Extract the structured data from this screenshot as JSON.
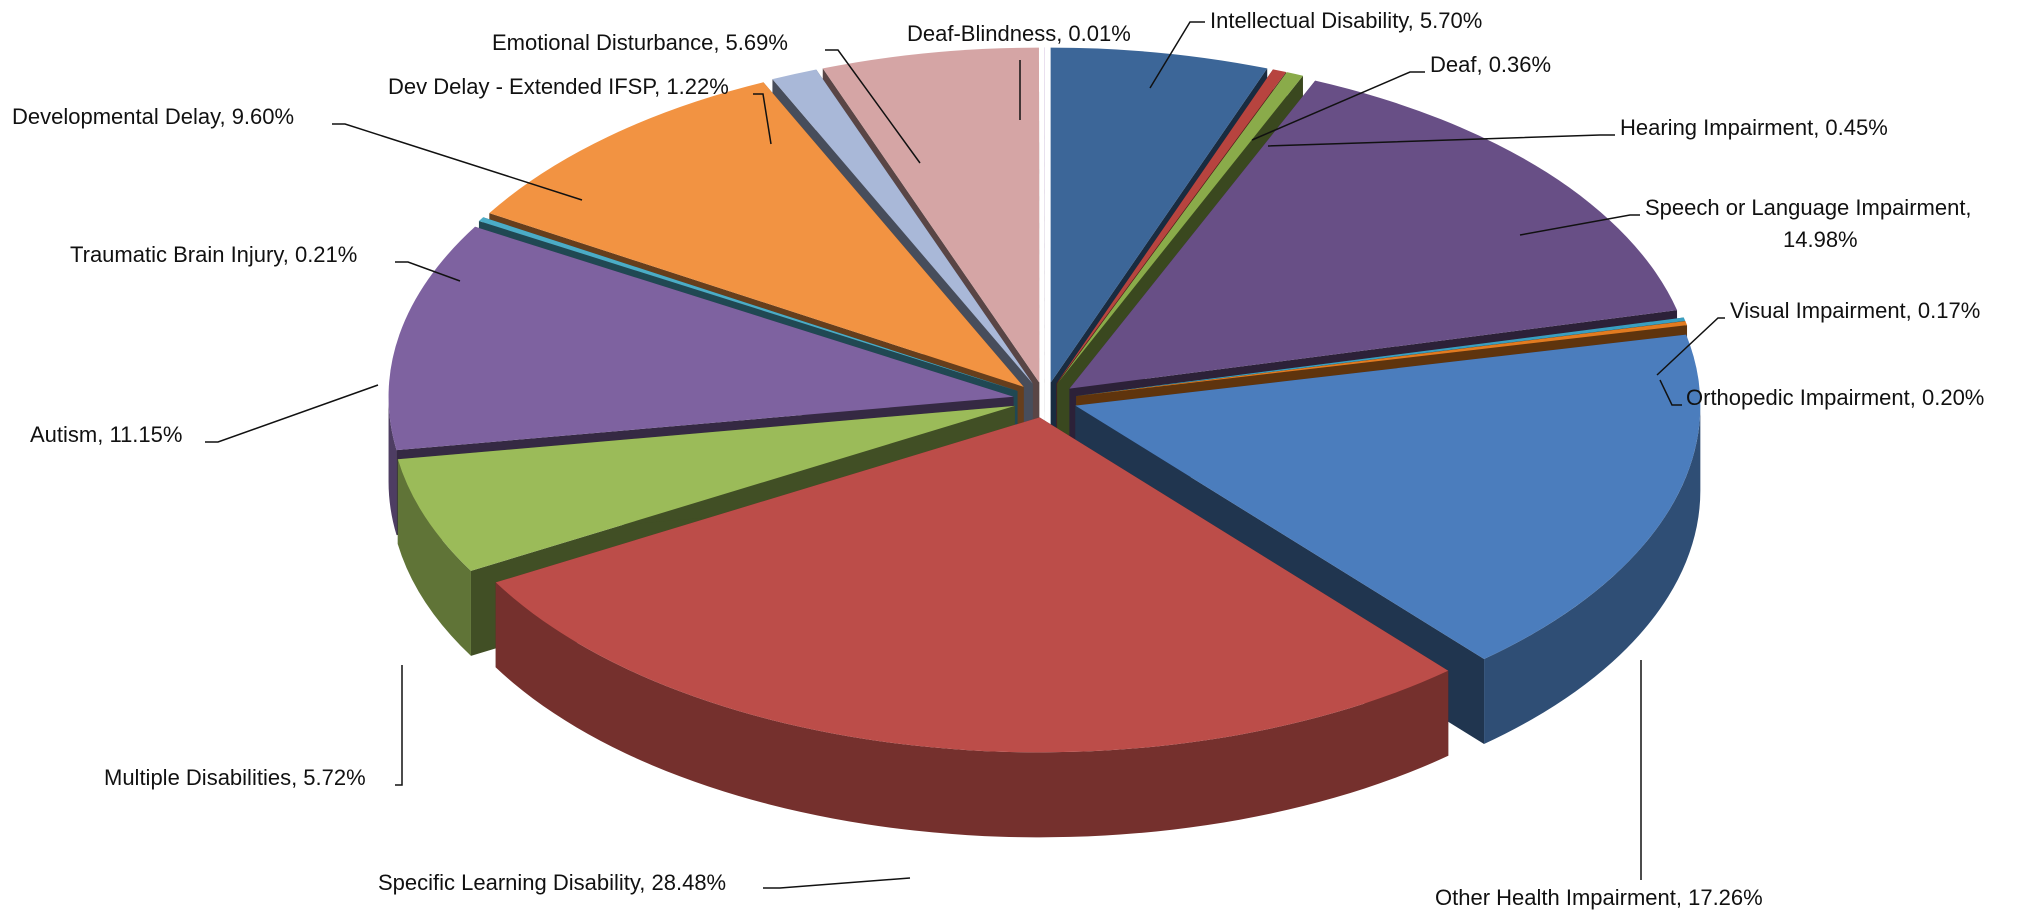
{
  "chart_data": {
    "type": "pie",
    "variant": "3d-exploded",
    "slices": [
      {
        "label": "Intellectual Disability, 5.70%",
        "name": "Intellectual Disability",
        "value": 5.7,
        "color": "#3c6698"
      },
      {
        "label": "Deaf, 0.36%",
        "name": "Deaf",
        "value": 0.36,
        "color": "#b7443f"
      },
      {
        "label": "Hearing Impairment, 0.45%",
        "name": "Hearing Impairment",
        "value": 0.45,
        "color": "#8aab4a"
      },
      {
        "label": "Speech or Language Impairment,",
        "label2": "14.98%",
        "name": "Speech or Language Impairment",
        "value": 14.98,
        "color": "#684f86"
      },
      {
        "label": "Visual Impairment, 0.17%",
        "name": "Visual Impairment",
        "value": 0.17,
        "color": "#3a9fc0"
      },
      {
        "label": "Orthopedic Impairment, 0.20%",
        "name": "Orthopedic Impairment",
        "value": 0.2,
        "color": "#e27b20"
      },
      {
        "label": "Other Health Impairment, 17.26%",
        "name": "Other Health Impairment",
        "value": 17.26,
        "color": "#4b7dbd"
      },
      {
        "label": "Specific Learning Disability, 28.48%",
        "name": "Specific Learning Disability",
        "value": 28.48,
        "color": "#bc4d49"
      },
      {
        "label": "Multiple Disabilities, 5.72%",
        "name": "Multiple Disabilities",
        "value": 5.72,
        "color": "#9bbb59"
      },
      {
        "label": "Autism, 11.15%",
        "name": "Autism",
        "value": 11.15,
        "color": "#7e62a0"
      },
      {
        "label": "Traumatic Brain Injury, 0.21%",
        "name": "Traumatic Brain Injury",
        "value": 0.21,
        "color": "#4bacc6"
      },
      {
        "label": "Developmental Delay, 9.60%",
        "name": "Developmental Delay",
        "value": 9.6,
        "color": "#f29342"
      },
      {
        "label": "Dev Delay - Extended IFSP, 1.22%",
        "name": "Dev Delay - Extended IFSP",
        "value": 1.22,
        "color": "#a9b8d8"
      },
      {
        "label": "Emotional Disturbance, 5.69%",
        "name": "Emotional Disturbance",
        "value": 5.69,
        "color": "#d5a5a5"
      },
      {
        "label": "Deaf-Blindness, 0.01%",
        "name": "Deaf-Blindness",
        "value": 0.01,
        "color": "#c9b0d8"
      }
    ],
    "legend": "none",
    "data_labels": "outside with leader lines"
  }
}
